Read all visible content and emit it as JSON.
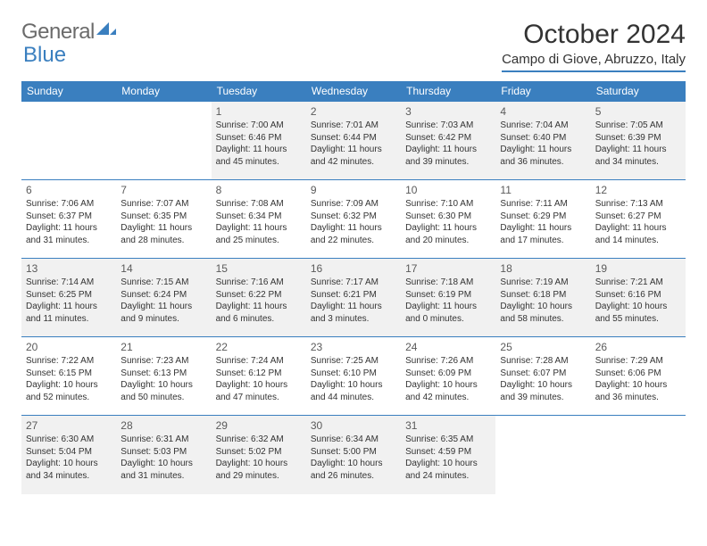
{
  "brand": {
    "part1": "General",
    "part2": "Blue"
  },
  "title": "October 2024",
  "location": "Campo di Giove, Abruzzo, Italy",
  "colors": {
    "header_bg": "#3a7fbf",
    "header_text": "#ffffff",
    "border": "#3a7fbf",
    "shaded_row": "#f1f1f1",
    "text": "#333333",
    "logo_gray": "#6b6b6b",
    "logo_blue": "#3a7fbf"
  },
  "weekdays": [
    "Sunday",
    "Monday",
    "Tuesday",
    "Wednesday",
    "Thursday",
    "Friday",
    "Saturday"
  ],
  "weeks": [
    {
      "shaded": true,
      "days": [
        null,
        null,
        {
          "n": "1",
          "sunrise": "Sunrise: 7:00 AM",
          "sunset": "Sunset: 6:46 PM",
          "daylight": "Daylight: 11 hours and 45 minutes."
        },
        {
          "n": "2",
          "sunrise": "Sunrise: 7:01 AM",
          "sunset": "Sunset: 6:44 PM",
          "daylight": "Daylight: 11 hours and 42 minutes."
        },
        {
          "n": "3",
          "sunrise": "Sunrise: 7:03 AM",
          "sunset": "Sunset: 6:42 PM",
          "daylight": "Daylight: 11 hours and 39 minutes."
        },
        {
          "n": "4",
          "sunrise": "Sunrise: 7:04 AM",
          "sunset": "Sunset: 6:40 PM",
          "daylight": "Daylight: 11 hours and 36 minutes."
        },
        {
          "n": "5",
          "sunrise": "Sunrise: 7:05 AM",
          "sunset": "Sunset: 6:39 PM",
          "daylight": "Daylight: 11 hours and 34 minutes."
        }
      ]
    },
    {
      "shaded": false,
      "days": [
        {
          "n": "6",
          "sunrise": "Sunrise: 7:06 AM",
          "sunset": "Sunset: 6:37 PM",
          "daylight": "Daylight: 11 hours and 31 minutes."
        },
        {
          "n": "7",
          "sunrise": "Sunrise: 7:07 AM",
          "sunset": "Sunset: 6:35 PM",
          "daylight": "Daylight: 11 hours and 28 minutes."
        },
        {
          "n": "8",
          "sunrise": "Sunrise: 7:08 AM",
          "sunset": "Sunset: 6:34 PM",
          "daylight": "Daylight: 11 hours and 25 minutes."
        },
        {
          "n": "9",
          "sunrise": "Sunrise: 7:09 AM",
          "sunset": "Sunset: 6:32 PM",
          "daylight": "Daylight: 11 hours and 22 minutes."
        },
        {
          "n": "10",
          "sunrise": "Sunrise: 7:10 AM",
          "sunset": "Sunset: 6:30 PM",
          "daylight": "Daylight: 11 hours and 20 minutes."
        },
        {
          "n": "11",
          "sunrise": "Sunrise: 7:11 AM",
          "sunset": "Sunset: 6:29 PM",
          "daylight": "Daylight: 11 hours and 17 minutes."
        },
        {
          "n": "12",
          "sunrise": "Sunrise: 7:13 AM",
          "sunset": "Sunset: 6:27 PM",
          "daylight": "Daylight: 11 hours and 14 minutes."
        }
      ]
    },
    {
      "shaded": true,
      "days": [
        {
          "n": "13",
          "sunrise": "Sunrise: 7:14 AM",
          "sunset": "Sunset: 6:25 PM",
          "daylight": "Daylight: 11 hours and 11 minutes."
        },
        {
          "n": "14",
          "sunrise": "Sunrise: 7:15 AM",
          "sunset": "Sunset: 6:24 PM",
          "daylight": "Daylight: 11 hours and 9 minutes."
        },
        {
          "n": "15",
          "sunrise": "Sunrise: 7:16 AM",
          "sunset": "Sunset: 6:22 PM",
          "daylight": "Daylight: 11 hours and 6 minutes."
        },
        {
          "n": "16",
          "sunrise": "Sunrise: 7:17 AM",
          "sunset": "Sunset: 6:21 PM",
          "daylight": "Daylight: 11 hours and 3 minutes."
        },
        {
          "n": "17",
          "sunrise": "Sunrise: 7:18 AM",
          "sunset": "Sunset: 6:19 PM",
          "daylight": "Daylight: 11 hours and 0 minutes."
        },
        {
          "n": "18",
          "sunrise": "Sunrise: 7:19 AM",
          "sunset": "Sunset: 6:18 PM",
          "daylight": "Daylight: 10 hours and 58 minutes."
        },
        {
          "n": "19",
          "sunrise": "Sunrise: 7:21 AM",
          "sunset": "Sunset: 6:16 PM",
          "daylight": "Daylight: 10 hours and 55 minutes."
        }
      ]
    },
    {
      "shaded": false,
      "days": [
        {
          "n": "20",
          "sunrise": "Sunrise: 7:22 AM",
          "sunset": "Sunset: 6:15 PM",
          "daylight": "Daylight: 10 hours and 52 minutes."
        },
        {
          "n": "21",
          "sunrise": "Sunrise: 7:23 AM",
          "sunset": "Sunset: 6:13 PM",
          "daylight": "Daylight: 10 hours and 50 minutes."
        },
        {
          "n": "22",
          "sunrise": "Sunrise: 7:24 AM",
          "sunset": "Sunset: 6:12 PM",
          "daylight": "Daylight: 10 hours and 47 minutes."
        },
        {
          "n": "23",
          "sunrise": "Sunrise: 7:25 AM",
          "sunset": "Sunset: 6:10 PM",
          "daylight": "Daylight: 10 hours and 44 minutes."
        },
        {
          "n": "24",
          "sunrise": "Sunrise: 7:26 AM",
          "sunset": "Sunset: 6:09 PM",
          "daylight": "Daylight: 10 hours and 42 minutes."
        },
        {
          "n": "25",
          "sunrise": "Sunrise: 7:28 AM",
          "sunset": "Sunset: 6:07 PM",
          "daylight": "Daylight: 10 hours and 39 minutes."
        },
        {
          "n": "26",
          "sunrise": "Sunrise: 7:29 AM",
          "sunset": "Sunset: 6:06 PM",
          "daylight": "Daylight: 10 hours and 36 minutes."
        }
      ]
    },
    {
      "shaded": true,
      "days": [
        {
          "n": "27",
          "sunrise": "Sunrise: 6:30 AM",
          "sunset": "Sunset: 5:04 PM",
          "daylight": "Daylight: 10 hours and 34 minutes."
        },
        {
          "n": "28",
          "sunrise": "Sunrise: 6:31 AM",
          "sunset": "Sunset: 5:03 PM",
          "daylight": "Daylight: 10 hours and 31 minutes."
        },
        {
          "n": "29",
          "sunrise": "Sunrise: 6:32 AM",
          "sunset": "Sunset: 5:02 PM",
          "daylight": "Daylight: 10 hours and 29 minutes."
        },
        {
          "n": "30",
          "sunrise": "Sunrise: 6:34 AM",
          "sunset": "Sunset: 5:00 PM",
          "daylight": "Daylight: 10 hours and 26 minutes."
        },
        {
          "n": "31",
          "sunrise": "Sunrise: 6:35 AM",
          "sunset": "Sunset: 4:59 PM",
          "daylight": "Daylight: 10 hours and 24 minutes."
        },
        null,
        null
      ]
    }
  ]
}
